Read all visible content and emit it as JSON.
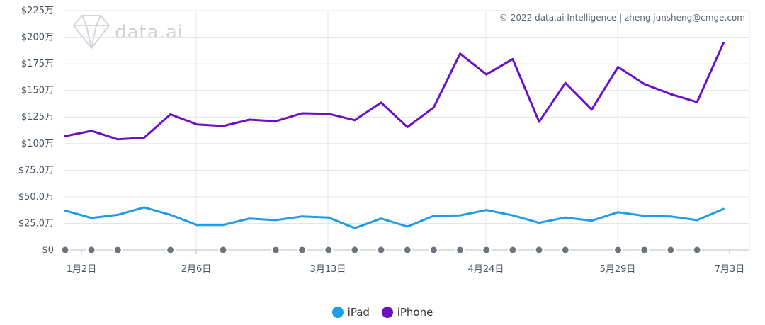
{
  "chart_data": {
    "type": "line",
    "yticks": [
      "$0",
      "$25.0万",
      "$50.0万",
      "$75.0万",
      "$100万",
      "$125万",
      "$150万",
      "$175万",
      "$200万",
      "$225万"
    ],
    "ylim": [
      0,
      225
    ],
    "xticks": [
      "1月2日",
      "2月6日",
      "3月13日",
      "4月24日",
      "5月29日",
      "7月3日"
    ],
    "credit": "© 2022 data.ai Intelligence | zheng.junsheng@cmge.com",
    "logo_text": "data.ai",
    "grid": true,
    "legend_position": "bottom",
    "series": [
      {
        "name": "iPad",
        "color": "#1e9be9",
        "values": [
          37,
          30,
          33,
          40,
          33,
          23.5,
          23.5,
          29.5,
          28,
          31.5,
          30.5,
          20.5,
          29.5,
          22,
          32,
          32.5,
          37.5,
          32.5,
          25.5,
          30.5,
          27.5,
          35.5,
          32,
          31.5,
          28,
          38.5
        ]
      },
      {
        "name": "iPhone",
        "color": "#6b0fc9",
        "values": [
          107,
          112,
          104,
          105.5,
          127.5,
          118,
          116.5,
          122.5,
          121,
          128.5,
          128,
          122,
          138.5,
          115.5,
          134,
          184.5,
          165,
          179.5,
          120.5,
          157,
          132,
          172,
          156,
          146.5,
          139,
          194.5
        ]
      }
    ],
    "zero_markers": [
      0,
      1,
      2,
      4,
      6,
      8,
      9,
      10,
      11,
      12,
      13,
      14,
      15,
      16,
      17,
      18,
      19,
      21,
      22,
      23,
      24
    ]
  }
}
